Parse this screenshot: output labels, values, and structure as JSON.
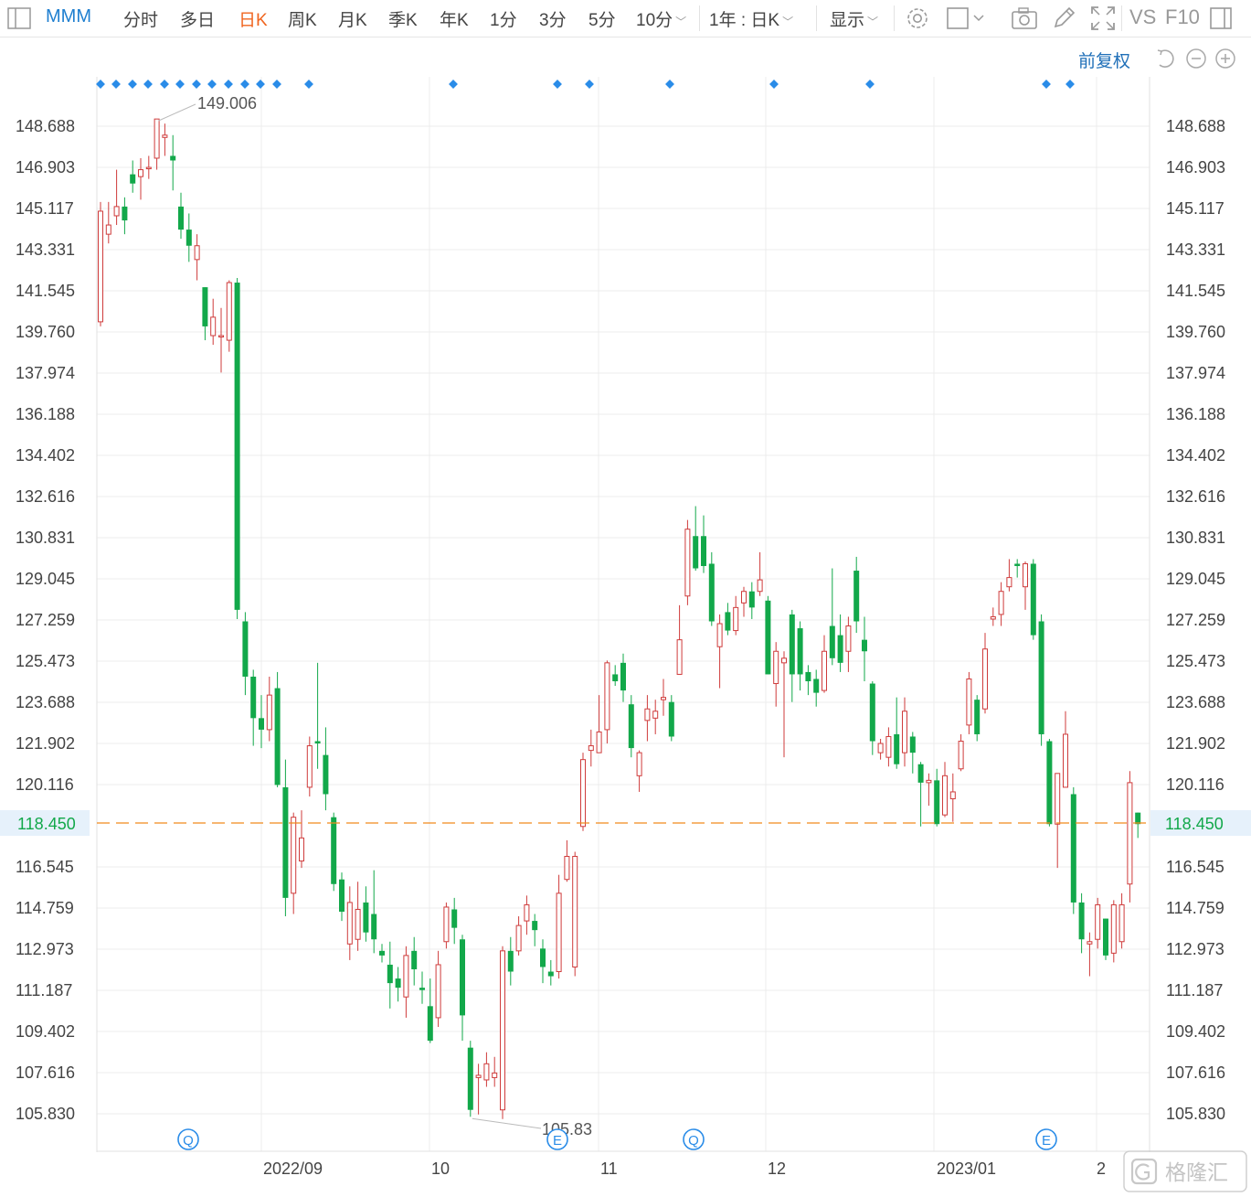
{
  "toolbar": {
    "symbol": "MMM",
    "periods": [
      "分时",
      "多日",
      "日K",
      "周K",
      "月K",
      "季K",
      "年K",
      "1分",
      "3分",
      "5分",
      "10分"
    ],
    "active_period": "日K",
    "range_select": "1年 : 日K",
    "display_label": "显示",
    "vs_label": "VS",
    "f10_label": "F10"
  },
  "subbar": {
    "adjust_label": "前复权"
  },
  "colors": {
    "up": "#cf3b3b",
    "down": "#12a84a",
    "grid": "#ececec",
    "current_line": "#f08a1c",
    "current_label": "#12a84a",
    "event_blue": "#2a8ce8",
    "symbol": "#1f7fd0"
  },
  "events": {
    "dot_count": 22,
    "bottom_markers": [
      "Q",
      "E",
      "Q",
      "E"
    ]
  },
  "chart_data": {
    "type": "candlestick",
    "title": "",
    "y_ticks": [
      148.688,
      146.903,
      145.117,
      143.331,
      141.545,
      139.76,
      137.974,
      136.188,
      134.402,
      132.616,
      130.831,
      129.045,
      127.259,
      125.473,
      123.688,
      121.902,
      120.116,
      116.545,
      114.759,
      112.973,
      111.187,
      109.402,
      107.616,
      105.83
    ],
    "ylim": [
      105.0,
      149.6
    ],
    "x_tick_labels": [
      "2022/09",
      "10",
      "11",
      "12",
      "2023/01",
      "2"
    ],
    "current_price": 118.45,
    "high_annotation": 149.006,
    "low_annotation": 105.83,
    "candles": [
      [
        140.2,
        145.0,
        145.4,
        140.0
      ],
      [
        144.0,
        144.4,
        145.4,
        143.6
      ],
      [
        144.8,
        145.2,
        146.8,
        144.4
      ],
      [
        145.2,
        144.6,
        145.6,
        144.0
      ],
      [
        146.6,
        146.2,
        147.2,
        145.8
      ],
      [
        146.5,
        146.8,
        147.3,
        145.5
      ],
      [
        146.9,
        146.9,
        147.4,
        146.4
      ],
      [
        147.3,
        149.0,
        149.0,
        146.8
      ],
      [
        148.2,
        148.3,
        148.8,
        147.4
      ],
      [
        147.4,
        147.2,
        148.3,
        145.9
      ],
      [
        145.2,
        144.2,
        145.8,
        143.8
      ],
      [
        144.2,
        143.5,
        144.9,
        142.8
      ],
      [
        142.9,
        143.5,
        144.0,
        142.0
      ],
      [
        141.7,
        140.0,
        141.7,
        139.4
      ],
      [
        139.6,
        140.4,
        141.2,
        139.2
      ],
      [
        139.6,
        139.6,
        140.8,
        138.0
      ],
      [
        139.4,
        141.9,
        142.0,
        138.9
      ],
      [
        141.9,
        127.7,
        142.1,
        127.3
      ],
      [
        127.2,
        124.8,
        127.6,
        124.0
      ],
      [
        124.8,
        123.0,
        125.1,
        121.8
      ],
      [
        123.0,
        122.5,
        124.0,
        121.7
      ],
      [
        122.5,
        124.0,
        124.8,
        122.0
      ],
      [
        124.3,
        120.1,
        125.0,
        120.0
      ],
      [
        120.0,
        115.2,
        121.2,
        114.4
      ],
      [
        115.4,
        118.7,
        118.9,
        114.5
      ],
      [
        116.8,
        117.8,
        119.0,
        116.5
      ],
      [
        120.0,
        121.8,
        122.2,
        119.6
      ],
      [
        122.0,
        121.9,
        125.4,
        120.8
      ],
      [
        121.4,
        119.7,
        122.6,
        119.0
      ],
      [
        118.7,
        115.8,
        118.9,
        115.5
      ],
      [
        116.0,
        114.6,
        116.3,
        114.2
      ],
      [
        113.2,
        115.0,
        115.7,
        112.5
      ],
      [
        113.4,
        114.7,
        115.9,
        112.9
      ],
      [
        115.0,
        113.7,
        115.7,
        113.3
      ],
      [
        114.5,
        113.4,
        116.4,
        112.8
      ],
      [
        112.9,
        112.7,
        113.2,
        112.4
      ],
      [
        112.3,
        111.5,
        113.3,
        110.4
      ],
      [
        111.7,
        111.3,
        112.2,
        110.7
      ],
      [
        110.9,
        112.7,
        113.1,
        110.0
      ],
      [
        112.9,
        112.1,
        113.5,
        111.4
      ],
      [
        111.3,
        111.2,
        112.0,
        110.6
      ],
      [
        110.5,
        109.0,
        111.7,
        108.9
      ],
      [
        110.0,
        112.3,
        112.9,
        109.6
      ],
      [
        113.3,
        114.8,
        115.0,
        113.0
      ],
      [
        114.7,
        113.9,
        115.2,
        113.2
      ],
      [
        113.4,
        110.1,
        113.6,
        109.0
      ],
      [
        108.7,
        106.0,
        109.0,
        105.7
      ],
      [
        107.4,
        107.5,
        108.0,
        105.8
      ],
      [
        107.3,
        108.0,
        108.5,
        107.0
      ],
      [
        107.4,
        107.6,
        108.3,
        107.0
      ],
      [
        106.0,
        112.9,
        113.1,
        105.6
      ],
      [
        112.9,
        112.0,
        113.5,
        111.4
      ],
      [
        112.9,
        114.0,
        114.4,
        112.7
      ],
      [
        114.2,
        114.9,
        115.3,
        113.6
      ],
      [
        114.2,
        113.8,
        114.5,
        113.1
      ],
      [
        113.0,
        112.2,
        113.4,
        111.5
      ],
      [
        112.0,
        111.8,
        112.5,
        111.4
      ],
      [
        112.0,
        115.4,
        116.2,
        111.7
      ],
      [
        116.0,
        117.0,
        117.7,
        115.9
      ],
      [
        112.2,
        117.0,
        117.2,
        111.8
      ],
      [
        118.3,
        121.2,
        121.5,
        118.1
      ],
      [
        121.6,
        121.8,
        122.5,
        120.9
      ],
      [
        121.5,
        122.4,
        124.0,
        121.5
      ],
      [
        122.5,
        125.4,
        125.5,
        121.9
      ],
      [
        124.9,
        124.6,
        125.3,
        124.4
      ],
      [
        125.4,
        124.2,
        125.8,
        123.7
      ],
      [
        123.6,
        121.7,
        124.0,
        121.3
      ],
      [
        120.5,
        121.5,
        121.6,
        119.8
      ],
      [
        122.9,
        123.4,
        124.0,
        122.0
      ],
      [
        123.0,
        123.3,
        123.8,
        122.3
      ],
      [
        123.8,
        123.9,
        124.7,
        123.1
      ],
      [
        123.7,
        122.2,
        124.0,
        122.0
      ],
      [
        124.9,
        126.4,
        127.9,
        125.1
      ],
      [
        128.3,
        131.2,
        131.6,
        127.9
      ],
      [
        130.9,
        129.5,
        132.2,
        129.4
      ],
      [
        130.9,
        129.6,
        131.8,
        129.3
      ],
      [
        129.7,
        127.2,
        130.2,
        127.0
      ],
      [
        126.1,
        127.1,
        127.5,
        124.3
      ],
      [
        127.6,
        126.8,
        128.0,
        126.6
      ],
      [
        126.8,
        127.8,
        128.3,
        126.6
      ],
      [
        128.0,
        128.5,
        128.7,
        127.4
      ],
      [
        128.5,
        127.8,
        128.9,
        127.3
      ],
      [
        128.5,
        129.0,
        130.2,
        128.3
      ],
      [
        128.1,
        124.9,
        128.3,
        124.9
      ],
      [
        124.5,
        125.9,
        126.3,
        123.5
      ],
      [
        125.4,
        125.6,
        125.9,
        121.3
      ],
      [
        127.5,
        124.9,
        127.7,
        123.7
      ],
      [
        126.9,
        124.9,
        127.2,
        124.2
      ],
      [
        125.0,
        124.6,
        125.3,
        124.0
      ],
      [
        124.7,
        124.1,
        125.1,
        123.5
      ],
      [
        124.2,
        125.9,
        126.6,
        124.1
      ],
      [
        127.0,
        125.6,
        129.5,
        125.3
      ],
      [
        126.6,
        125.4,
        127.5,
        125.0
      ],
      [
        125.9,
        127.0,
        127.4,
        125.0
      ],
      [
        129.4,
        127.2,
        130.0,
        126.7
      ],
      [
        126.4,
        125.9,
        127.4,
        124.6
      ],
      [
        124.5,
        122.0,
        124.6,
        121.4
      ],
      [
        121.5,
        121.9,
        122.1,
        121.2
      ],
      [
        121.3,
        122.2,
        122.6,
        120.9
      ],
      [
        122.3,
        121.0,
        123.9,
        120.8
      ],
      [
        121.5,
        123.3,
        123.9,
        120.9
      ],
      [
        122.2,
        121.5,
        122.4,
        120.6
      ],
      [
        121.0,
        120.2,
        121.1,
        118.3
      ],
      [
        120.2,
        120.3,
        120.6,
        119.2
      ],
      [
        120.3,
        118.4,
        120.8,
        118.3
      ],
      [
        118.8,
        120.5,
        121.1,
        118.7
      ],
      [
        119.5,
        119.8,
        120.6,
        118.5
      ],
      [
        120.8,
        122.0,
        122.3,
        120.7
      ],
      [
        122.7,
        124.7,
        125.0,
        122.3
      ],
      [
        123.8,
        122.3,
        124.0,
        122.0
      ],
      [
        123.4,
        126.0,
        126.7,
        123.2
      ],
      [
        127.3,
        127.4,
        127.8,
        127.0
      ],
      [
        127.5,
        128.5,
        128.9,
        127.0
      ],
      [
        128.7,
        129.1,
        129.9,
        128.5
      ],
      [
        129.7,
        129.6,
        129.9,
        129.1
      ],
      [
        128.7,
        129.7,
        129.8,
        127.7
      ],
      [
        129.7,
        126.6,
        129.9,
        126.4
      ],
      [
        127.2,
        122.3,
        127.5,
        121.8
      ],
      [
        122.0,
        118.4,
        122.1,
        118.3
      ],
      [
        118.4,
        120.6,
        120.6,
        116.5
      ],
      [
        120.0,
        122.3,
        123.3,
        120.0
      ],
      [
        119.7,
        115.0,
        120.0,
        114.5
      ],
      [
        115.0,
        113.4,
        115.4,
        112.8
      ],
      [
        113.2,
        113.3,
        113.7,
        111.8
      ],
      [
        113.4,
        114.9,
        115.2,
        113.0
      ],
      [
        114.3,
        112.7,
        114.3,
        112.5
      ],
      [
        112.8,
        114.9,
        115.1,
        112.4
      ],
      [
        113.3,
        114.9,
        115.4,
        113.0
      ],
      [
        115.8,
        120.2,
        120.7,
        115.0
      ],
      [
        118.9,
        118.4,
        118.9,
        117.8
      ]
    ]
  }
}
